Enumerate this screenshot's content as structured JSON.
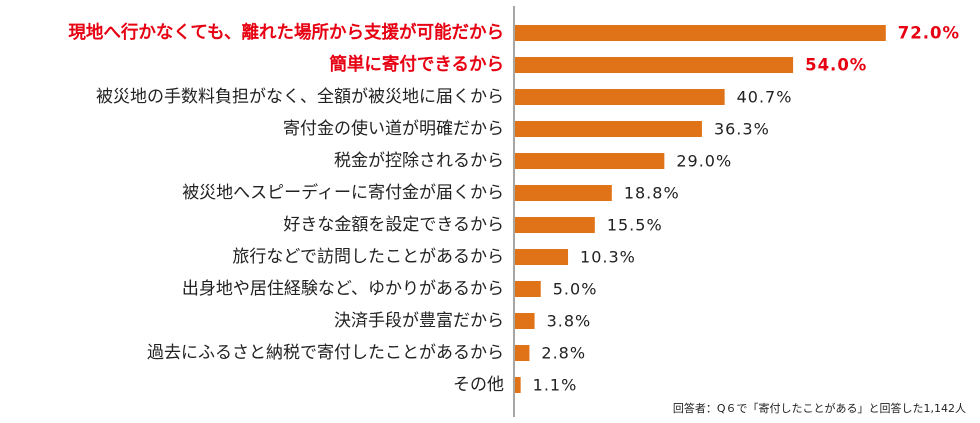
{
  "chart_data": {
    "type": "bar",
    "orientation": "horizontal",
    "categories": [
      "現地へ行かなくても、離れた場所から支援が可能だから",
      "簡単に寄付できるから",
      "被災地の手数料負担がなく、全額が被災地に届くから",
      "寄付金の使い道が明確だから",
      "税金が控除されるから",
      "被災地へスピーディーに寄付金が届くから",
      "好きな金額を設定できるから",
      "旅行などで訪問したことがあるから",
      "出身地や居住経験など、ゆかりがあるから",
      "決済手段が豊富だから",
      "過去にふるさと納税で寄付したことがあるから",
      "その他"
    ],
    "values": [
      72.0,
      54.0,
      40.7,
      36.3,
      29.0,
      18.8,
      15.5,
      10.3,
      5.0,
      3.8,
      2.8,
      1.1
    ],
    "value_labels": [
      "72.0%",
      "54.0%",
      "40.7%",
      "36.3%",
      "29.0%",
      "18.8%",
      "15.5%",
      "10.3%",
      "5.0%",
      "3.8%",
      "2.8%",
      "1.1%"
    ],
    "highlighted": [
      true,
      true,
      false,
      false,
      false,
      false,
      false,
      false,
      false,
      false,
      false,
      false
    ],
    "xlim": [
      0,
      80
    ],
    "unit": "%",
    "bar_color": "#e07318",
    "highlight_color": "#e60012",
    "axis_color": "#888888"
  },
  "footnote": "回答者：Q６で「寄付したことがある」と回答した1,142人"
}
